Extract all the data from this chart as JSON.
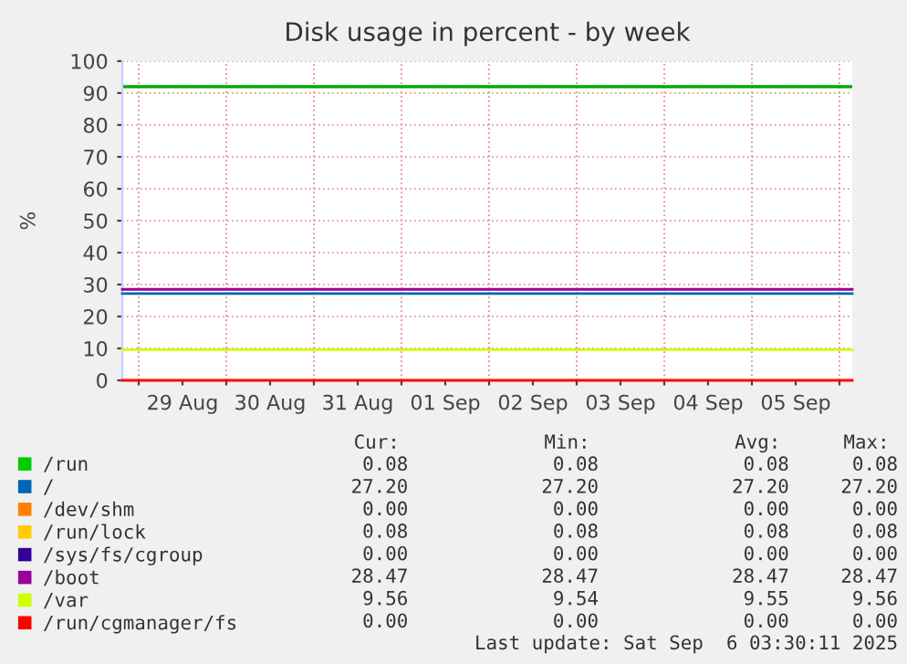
{
  "chart_data": {
    "type": "line",
    "title": "Disk usage in percent - by week",
    "ylabel": "%",
    "xlim": [
      "2025-08-28T19:30",
      "2025-09-06T03:30"
    ],
    "xticks": [
      {
        "value": "2025-08-29T00:00",
        "label": null
      },
      {
        "value": "2025-08-29T12:00",
        "label": "29 Aug"
      },
      {
        "value": "2025-08-30T00:00",
        "label": null
      },
      {
        "value": "2025-08-30T12:00",
        "label": "30 Aug"
      },
      {
        "value": "2025-08-31T00:00",
        "label": null
      },
      {
        "value": "2025-08-31T12:00",
        "label": "31 Aug"
      },
      {
        "value": "2025-09-01T00:00",
        "label": null
      },
      {
        "value": "2025-09-01T12:00",
        "label": "01 Sep"
      },
      {
        "value": "2025-09-02T00:00",
        "label": null
      },
      {
        "value": "2025-09-02T12:00",
        "label": "02 Sep"
      },
      {
        "value": "2025-09-03T00:00",
        "label": null
      },
      {
        "value": "2025-09-03T12:00",
        "label": "03 Sep"
      },
      {
        "value": "2025-09-04T00:00",
        "label": null
      },
      {
        "value": "2025-09-04T12:00",
        "label": "04 Sep"
      },
      {
        "value": "2025-09-05T00:00",
        "label": null
      },
      {
        "value": "2025-09-05T12:00",
        "label": "05 Sep"
      },
      {
        "value": "2025-09-06T00:00",
        "label": null
      }
    ],
    "ylim": [
      0,
      100
    ],
    "yticks": [
      0,
      10,
      20,
      30,
      40,
      50,
      60,
      70,
      80,
      90,
      100
    ],
    "grid": true,
    "legend": "bottom",
    "marker": "none",
    "line_style": "solid",
    "x": [
      "2025-08-28T19:30",
      "2025-09-06T03:30"
    ],
    "series": [
      {
        "name": "/run",
        "color": "#00cc00",
        "values": [
          null,
          null
        ]
      },
      {
        "name": "/",
        "color": "#0066b3",
        "values": [
          27.2,
          27.2
        ]
      },
      {
        "name": "/dev/shm",
        "color": "#ff8000",
        "values": [
          null,
          null
        ]
      },
      {
        "name": "/run/lock",
        "color": "#ffcc00",
        "values": [
          null,
          null
        ]
      },
      {
        "name": "/sys/fs/cgroup",
        "color": "#330099",
        "values": [
          null,
          null
        ]
      },
      {
        "name": "/boot",
        "color": "#990099",
        "values": [
          28.5,
          28.5
        ]
      },
      {
        "name": "/var",
        "color": "#ccff00",
        "values": [
          9.6,
          9.6
        ]
      },
      {
        "name": "/run/cgmanager/fs",
        "color": "#ff0000",
        "values": [
          0,
          0
        ]
      }
    ],
    "ref_lines": [
      {
        "axis": "y",
        "value": 92,
        "color": "#00aa00"
      }
    ],
    "annotations": [
      "Cur:",
      "Min:",
      "Avg:",
      "Max:",
      "0.08",
      "0.08",
      "0.08",
      "0.08",
      "27.20",
      "27.20",
      "27.20",
      "27.20",
      "0.00",
      "0.00",
      "0.00",
      "0.00",
      "0.08",
      "0.08",
      "0.08",
      "0.08",
      "0.00",
      "0.00",
      "0.00",
      "0.00",
      "28.47",
      "28.47",
      "28.47",
      "28.47",
      "9.56",
      "9.54",
      "9.55",
      "9.56",
      "0.00",
      "0.00",
      "0.00",
      "0.00",
      "Last update: Sat Sep  6 03:30:11 2025"
    ]
  }
}
